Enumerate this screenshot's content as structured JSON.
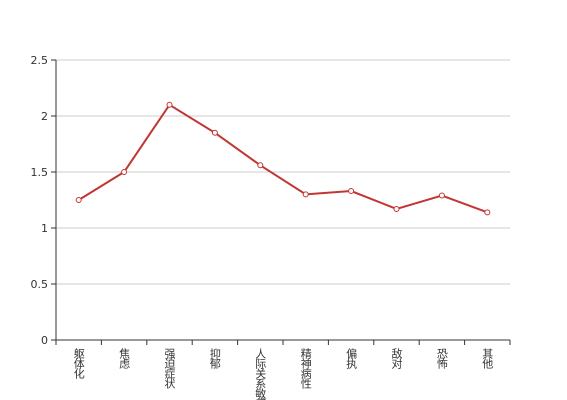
{
  "chart_data": {
    "type": "line",
    "categories": [
      "躯体化",
      "焦虑",
      "强迫症状",
      "抑郁",
      "人际关系敏感",
      "精神病性",
      "偏执",
      "敌对",
      "恐怖",
      "其他"
    ],
    "series": [
      {
        "color": "#c23531",
        "values": [
          1.25,
          1.5,
          2.1,
          1.85,
          1.56,
          1.3,
          1.33,
          1.17,
          1.29,
          1.14
        ]
      }
    ],
    "ylim": [
      0,
      2.5
    ],
    "yticks": [
      0,
      0.5,
      1,
      1.5,
      2,
      2.5
    ],
    "grid": true
  }
}
